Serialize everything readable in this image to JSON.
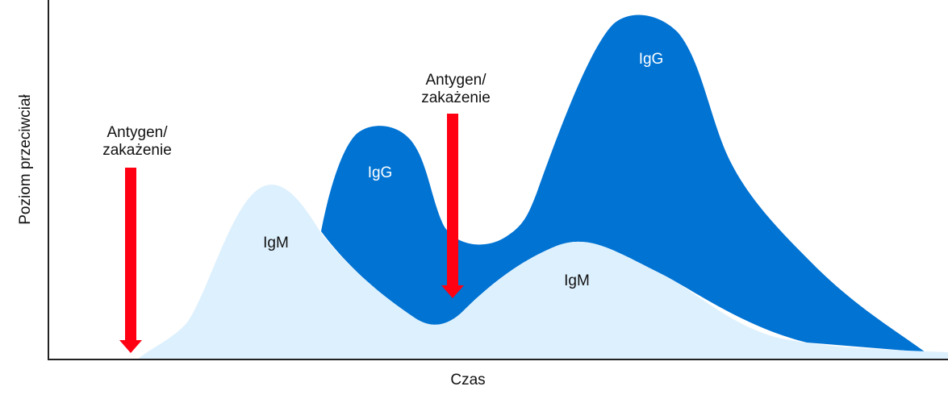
{
  "axes": {
    "x_label": "Czas",
    "y_label": "Poziom przeciwciał"
  },
  "events": [
    {
      "line1": "Antygen/",
      "line2": "zakażenie"
    },
    {
      "line1": "Antygen/",
      "line2": "zakażenie"
    }
  ],
  "regions": {
    "igm_primary": "IgM",
    "igg_primary": "IgG",
    "igm_secondary": "IgM",
    "igg_secondary": "IgG"
  },
  "colors": {
    "igm": "#DDF0FD",
    "igg": "#0073D3",
    "arrow": "#FF0013",
    "axis": "#222222"
  }
}
